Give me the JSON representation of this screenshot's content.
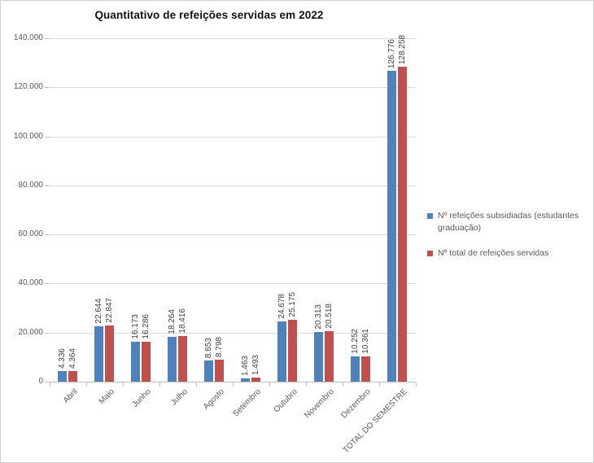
{
  "chart_data": {
    "type": "bar",
    "title": "Quantitativo de refeições servidas em 2022",
    "categories": [
      "Abril",
      "Maio",
      "Junho",
      "Julho",
      "Agosto",
      "Setembro",
      "Outubro",
      "Novembro",
      "Dezembro",
      "TOTAL DO SEMESTRE"
    ],
    "series": [
      {
        "name": "Nº refeições subsidiadas (estudantes graduação)",
        "color": "#4F81BD",
        "values": [
          4336,
          22644,
          16173,
          18264,
          8653,
          1463,
          24678,
          20313,
          10252,
          126776
        ],
        "value_labels": [
          "4.336",
          "22.644",
          "16.173",
          "18.264",
          "8.653",
          "1.463",
          "24.678",
          "20.313",
          "10.252",
          "126.776"
        ]
      },
      {
        "name": "Nº total de refeições servidas",
        "color": "#C0504D",
        "values": [
          4364,
          22847,
          16286,
          18416,
          8798,
          1493,
          25175,
          20518,
          10361,
          128258
        ],
        "value_labels": [
          "4.364",
          "22.847",
          "16.286",
          "18.416",
          "8.798",
          "1.493",
          "25.175",
          "20.518",
          "10.361",
          "128.258"
        ]
      }
    ],
    "ylim": [
      0,
      140000
    ],
    "ytick_interval": 20000,
    "ytick_labels": [
      "0",
      "20.000",
      "40.000",
      "60.000",
      "80.000",
      "100.000",
      "120.000",
      "140.000"
    ],
    "grid": true,
    "legend_position": "right",
    "data_labels": true,
    "data_labels_rotation": 90,
    "x_labels_rotation": 45
  }
}
